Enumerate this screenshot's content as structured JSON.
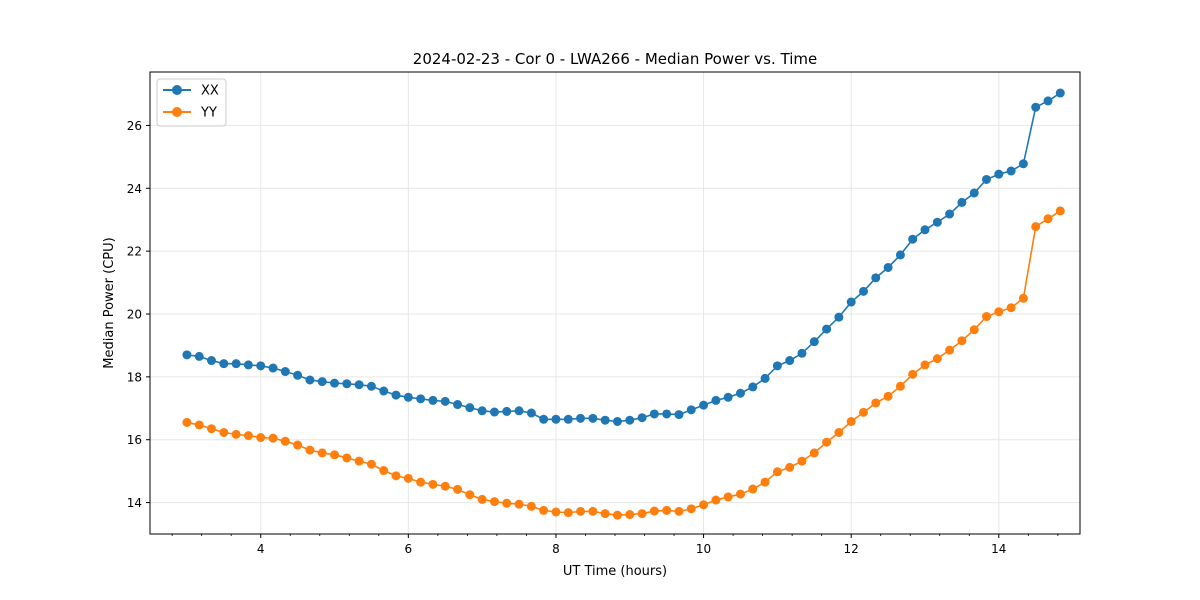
{
  "chart_data": {
    "type": "line",
    "title": "2024-02-23 - Cor 0 - LWA266 - Median Power vs. Time",
    "xlabel": "UT Time (hours)",
    "ylabel": "Median Power (CPU)",
    "xlim": [
      2.5,
      15.1
    ],
    "ylim": [
      13.0,
      27.7
    ],
    "xticks": [
      4,
      6,
      8,
      10,
      12,
      14
    ],
    "yticks": [
      14,
      16,
      18,
      20,
      22,
      24,
      26
    ],
    "xtick_labels": [
      "4",
      "6",
      "8",
      "10",
      "12",
      "14"
    ],
    "ytick_labels": [
      "14",
      "16",
      "18",
      "20",
      "22",
      "24",
      "26"
    ],
    "grid": true,
    "legend_position": "top-left",
    "x": [
      3.0,
      3.167,
      3.333,
      3.5,
      3.667,
      3.833,
      4.0,
      4.167,
      4.333,
      4.5,
      4.667,
      4.833,
      5.0,
      5.167,
      5.333,
      5.5,
      5.667,
      5.833,
      6.0,
      6.167,
      6.333,
      6.5,
      6.667,
      6.833,
      7.0,
      7.167,
      7.333,
      7.5,
      7.667,
      7.833,
      8.0,
      8.167,
      8.333,
      8.5,
      8.667,
      8.833,
      9.0,
      9.167,
      9.333,
      9.5,
      9.667,
      9.833,
      10.0,
      10.167,
      10.333,
      10.5,
      10.667,
      10.833,
      11.0,
      11.167,
      11.333,
      11.5,
      11.667,
      11.833,
      12.0,
      12.167,
      12.333,
      12.5,
      12.667,
      12.833,
      13.0,
      13.167,
      13.333,
      13.5,
      13.667,
      13.833,
      14.0,
      14.167,
      14.333,
      14.5,
      14.667,
      14.833
    ],
    "series": [
      {
        "name": "XX",
        "color": "#1f77b4",
        "values": [
          18.7,
          18.65,
          18.52,
          18.42,
          18.42,
          18.38,
          18.35,
          18.28,
          18.17,
          18.05,
          17.9,
          17.85,
          17.8,
          17.78,
          17.75,
          17.7,
          17.55,
          17.42,
          17.35,
          17.3,
          17.25,
          17.22,
          17.12,
          17.02,
          16.92,
          16.88,
          16.9,
          16.92,
          16.85,
          16.65,
          16.65,
          16.65,
          16.68,
          16.68,
          16.62,
          16.58,
          16.62,
          16.7,
          16.82,
          16.82,
          16.8,
          16.95,
          17.1,
          17.25,
          17.35,
          17.48,
          17.68,
          17.95,
          18.35,
          18.52,
          18.75,
          19.12,
          19.52,
          19.9,
          20.38,
          20.72,
          21.15,
          21.48,
          21.88,
          22.38,
          22.68,
          22.92,
          23.18,
          23.55,
          23.85,
          24.28,
          24.45,
          24.55,
          24.78,
          26.58,
          26.78,
          27.03
        ]
      },
      {
        "name": "YY",
        "color": "#ff7f0e",
        "values": [
          16.55,
          16.47,
          16.35,
          16.23,
          16.17,
          16.13,
          16.07,
          16.05,
          15.95,
          15.83,
          15.67,
          15.58,
          15.52,
          15.42,
          15.32,
          15.22,
          15.02,
          14.85,
          14.77,
          14.65,
          14.58,
          14.52,
          14.42,
          14.25,
          14.1,
          14.03,
          13.98,
          13.95,
          13.88,
          13.75,
          13.7,
          13.68,
          13.72,
          13.72,
          13.65,
          13.6,
          13.62,
          13.65,
          13.73,
          13.75,
          13.72,
          13.8,
          13.93,
          14.08,
          14.18,
          14.27,
          14.43,
          14.65,
          14.98,
          15.12,
          15.32,
          15.58,
          15.92,
          16.23,
          16.58,
          16.87,
          17.17,
          17.38,
          17.7,
          18.08,
          18.38,
          18.58,
          18.85,
          19.15,
          19.5,
          19.92,
          20.07,
          20.2,
          20.5,
          22.78,
          23.03,
          23.28
        ]
      }
    ]
  }
}
